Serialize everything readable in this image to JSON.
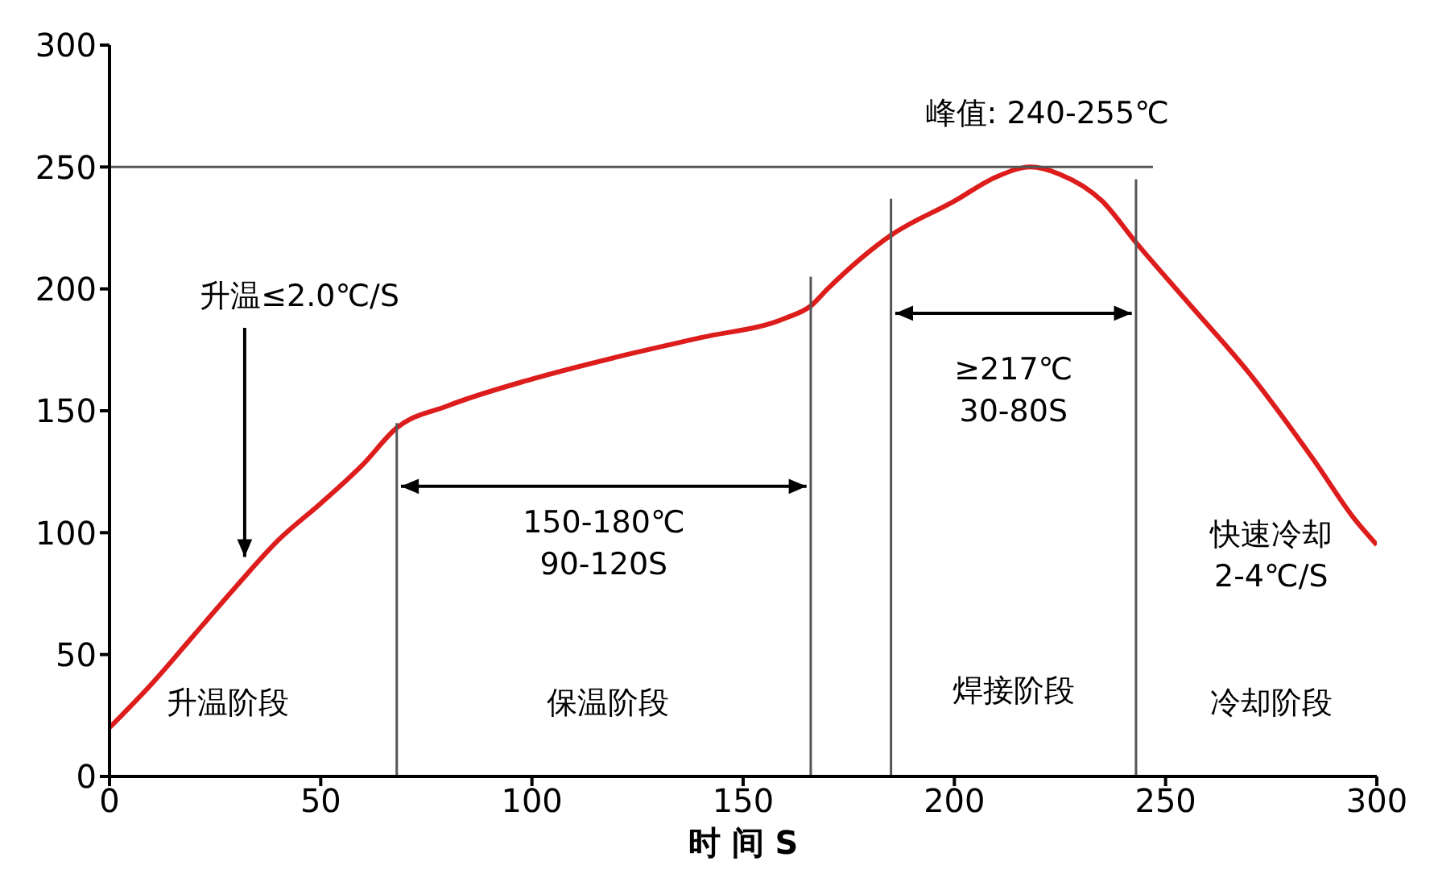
{
  "chart_data": {
    "type": "line",
    "xlabel": "时 间 S",
    "xlim": [
      0,
      300
    ],
    "xticks": [
      0,
      50,
      100,
      150,
      200,
      250,
      300
    ],
    "ylim": [
      0,
      300
    ],
    "yticks": [
      0,
      50,
      100,
      150,
      200,
      250,
      300
    ],
    "grid": false,
    "legend": false,
    "marker": "none",
    "line_style": "solid",
    "series": [
      {
        "color": "#dd1c1c",
        "x": [
          0,
          10,
          20,
          30,
          40,
          50,
          60,
          68,
          80,
          100,
          120,
          140,
          160,
          166,
          170,
          185,
          200,
          210,
          218,
          225,
          235,
          243,
          255,
          270,
          285,
          295,
          300
        ],
        "values": [
          20,
          38,
          58,
          78,
          97,
          112,
          128,
          143,
          152,
          163,
          172,
          180,
          188,
          193,
          200,
          222,
          236,
          246,
          250,
          247,
          236,
          219,
          195,
          165,
          130,
          105,
          95
        ]
      },
      {
        "color": "#555555",
        "x": [
          0,
          247
        ],
        "values": [
          250,
          250
        ]
      },
      {
        "color": "#555555",
        "x": [
          68,
          68
        ],
        "values": [
          0,
          145
        ]
      },
      {
        "color": "#555555",
        "x": [
          166,
          166
        ],
        "values": [
          0,
          205
        ]
      },
      {
        "color": "#555555",
        "x": [
          185,
          185
        ],
        "values": [
          0,
          237
        ]
      },
      {
        "color": "#555555",
        "x": [
          243,
          243
        ],
        "values": [
          0,
          245
        ]
      }
    ],
    "annotations": [
      "峰值: 240-255℃",
      "升温≤2.0℃/S",
      "150-180℃\n90-120S",
      "≥217℃\n30-80S",
      "快速冷却\n2-4℃/S",
      "升温阶段",
      "保温阶段",
      "焊接阶段",
      "冷却阶段"
    ]
  }
}
